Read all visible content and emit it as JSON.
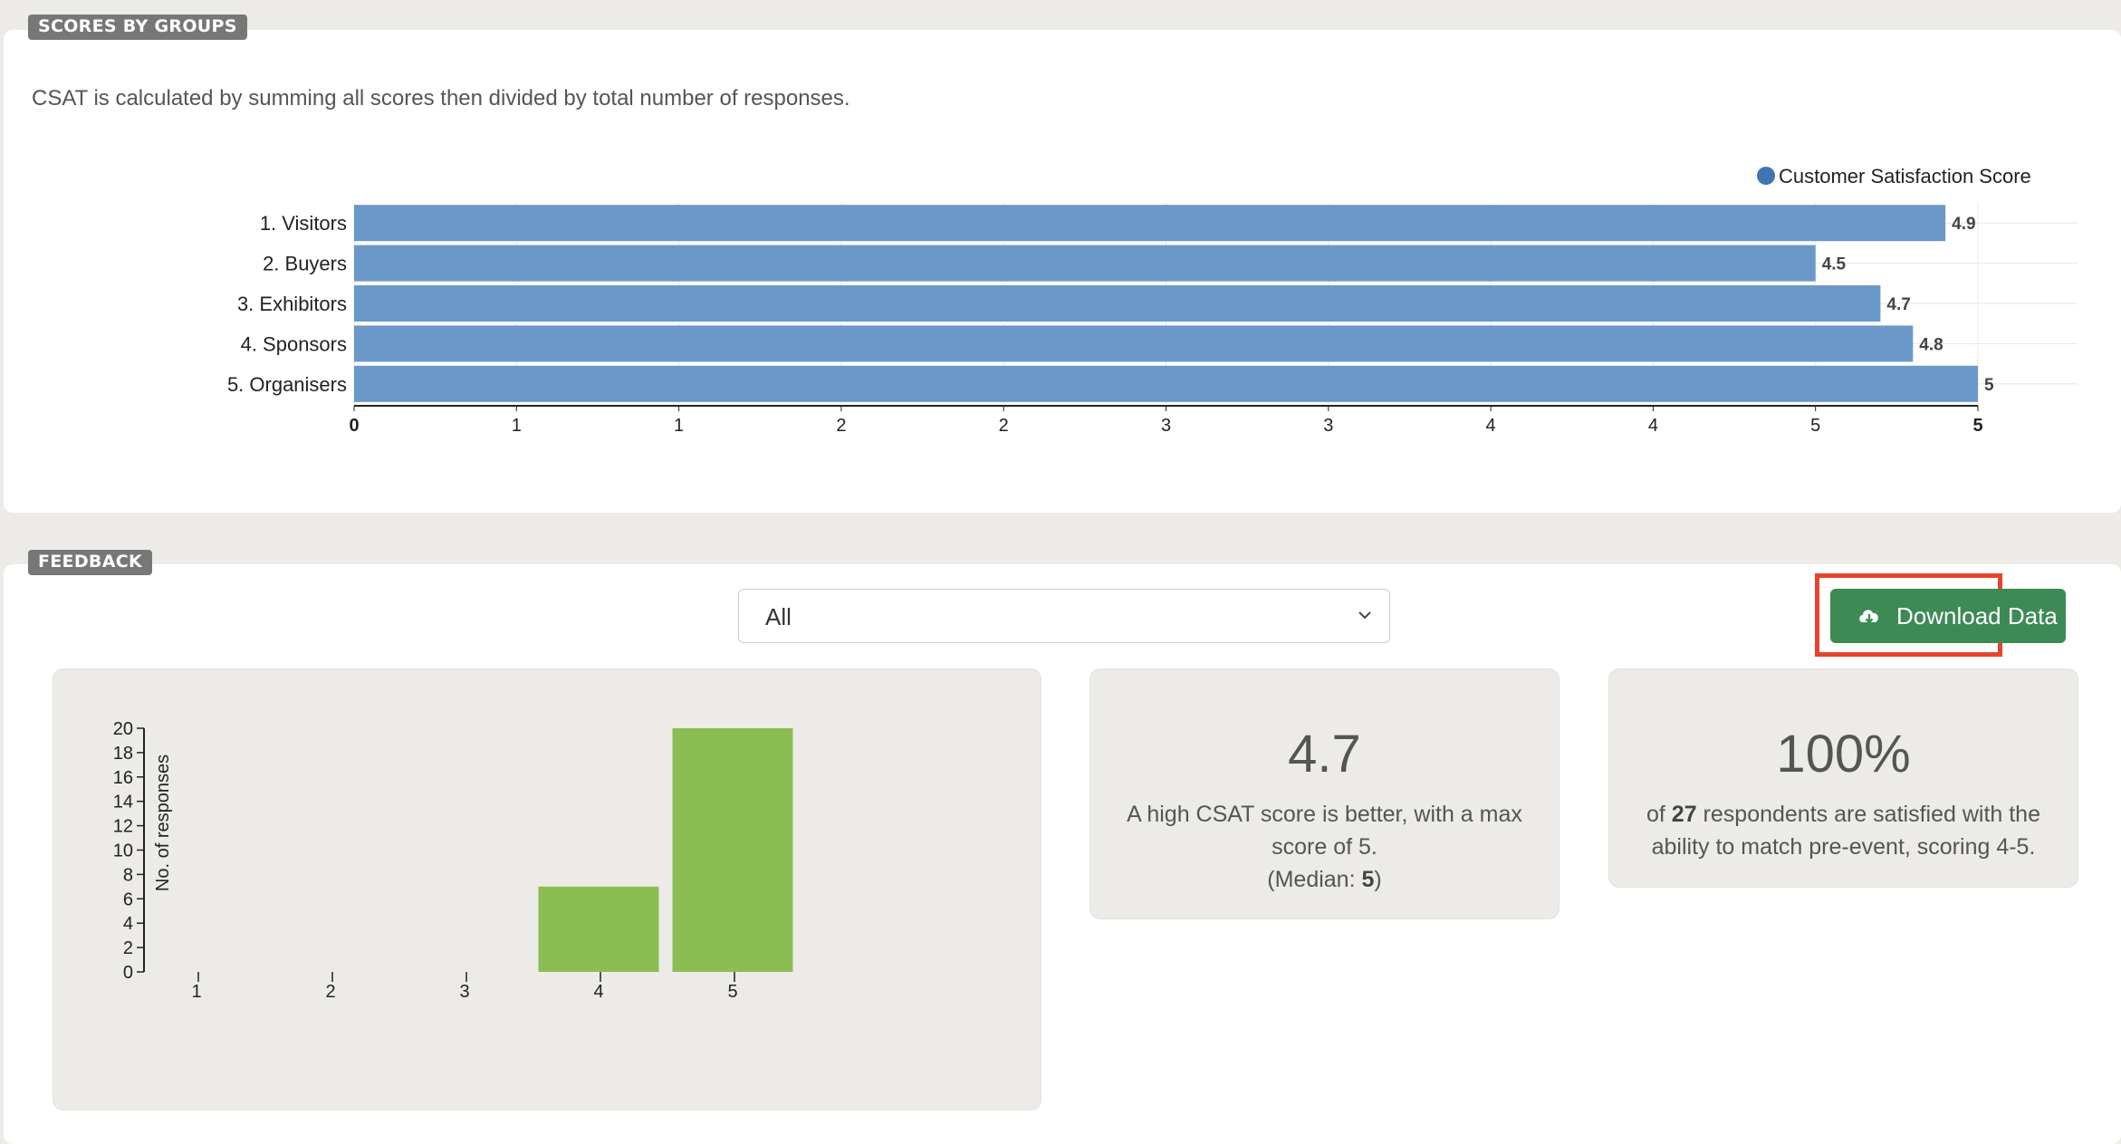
{
  "scores_section": {
    "tag": "SCORES BY GROUPS",
    "description": "CSAT is calculated by summing all scores then divided by total number of responses."
  },
  "feedback_section": {
    "tag": "FEEDBACK",
    "filter": {
      "selected": "All"
    },
    "download_button": {
      "label": "Download Data",
      "icon": "cloud-download-icon"
    }
  },
  "csat_card": {
    "value": "4.7",
    "text": "A high CSAT score is better, with a max score of 5.",
    "median_prefix": "(Median: ",
    "median_value": "5",
    "median_suffix": ")"
  },
  "satisfied_card": {
    "value": "100%",
    "text_prefix": "of ",
    "respondents": "27",
    "text_suffix": " respondents are satisfied with the ability to match pre-event, scoring 4-5."
  },
  "colors": {
    "bar_blue": "#6a98c8",
    "legend_blue": "#3f75b5",
    "bar_green": "#8bbd53",
    "button_green": "#3d8a55",
    "highlight_red": "#e8432d"
  },
  "chart_data": [
    {
      "type": "bar",
      "orientation": "horizontal",
      "categories": [
        "1. Visitors",
        "2. Buyers",
        "3. Exhibitors",
        "4. Sponsors",
        "5. Organisers"
      ],
      "series": [
        {
          "name": "Customer Satisfaction Score",
          "values": [
            4.9,
            4.5,
            4.7,
            4.8,
            5
          ],
          "labels": [
            "4.9",
            "4.5",
            "4.7",
            "4.8",
            "5"
          ]
        }
      ],
      "xlim": [
        0,
        5
      ],
      "xticks": [
        0,
        0.5,
        1,
        1.5,
        2,
        2.5,
        3,
        3.5,
        4,
        4.5,
        5
      ],
      "xtick_labels": [
        "0",
        "1",
        "1",
        "2",
        "2",
        "3",
        "3",
        "4",
        "4",
        "5",
        "5"
      ],
      "grid": true,
      "legend": "top-right"
    },
    {
      "type": "bar",
      "categories": [
        "1",
        "2",
        "3",
        "4",
        "5"
      ],
      "values": [
        0,
        0,
        0,
        7,
        20
      ],
      "ylabel": "No. of responses",
      "ylim": [
        0,
        20
      ],
      "yticks": [
        0,
        2,
        4,
        6,
        8,
        10,
        12,
        14,
        16,
        18,
        20
      ]
    }
  ]
}
